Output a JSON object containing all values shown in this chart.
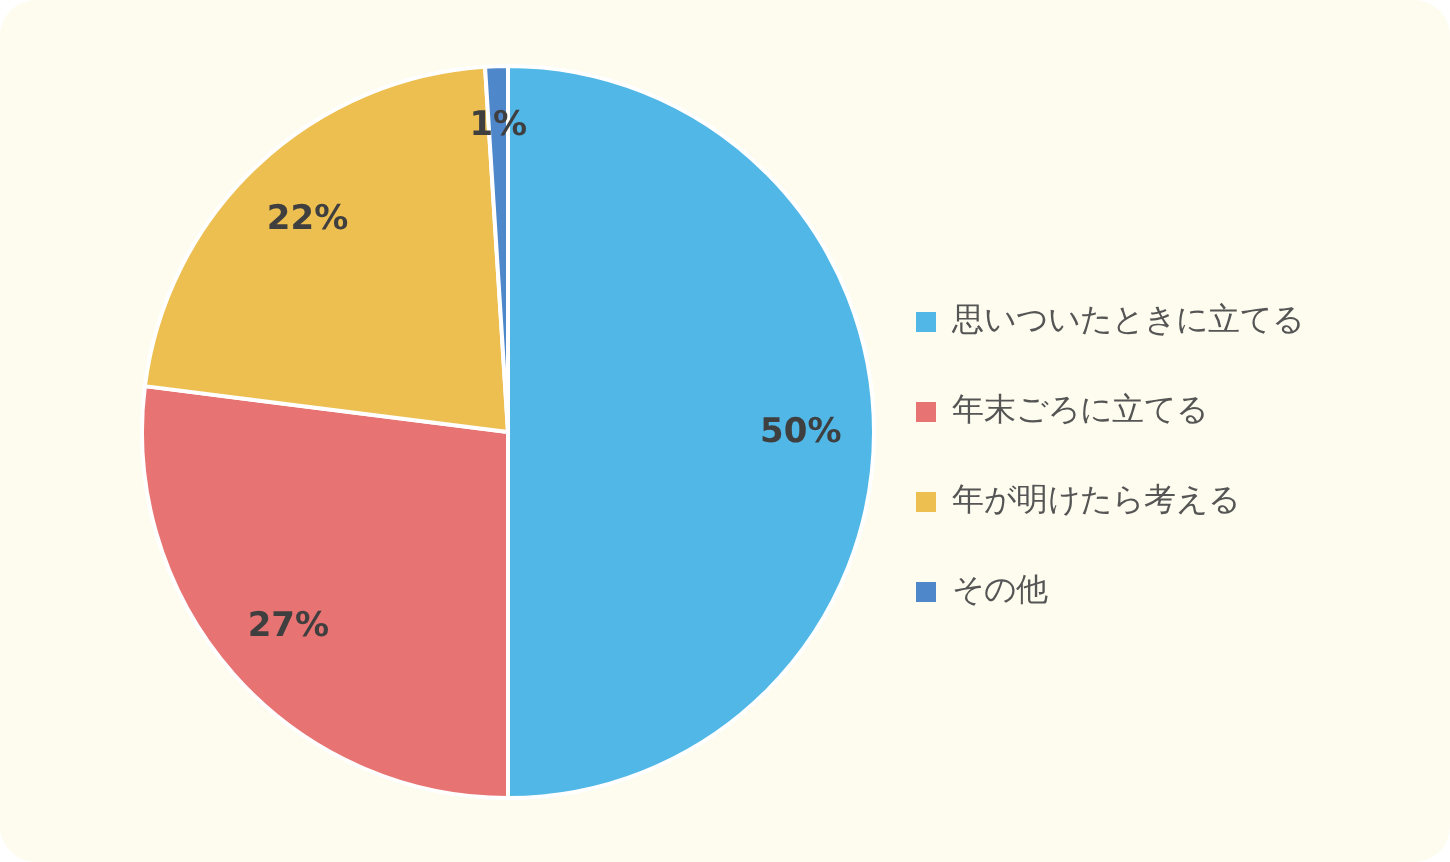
{
  "chart_data": {
    "type": "pie",
    "categories": [
      "思いついたときに立てる",
      "年末ごろに立てる",
      "年が明けたら考える",
      "その他"
    ],
    "values": [
      50,
      27,
      22,
      1
    ],
    "colors": [
      "#50b7e7",
      "#e77473",
      "#ecbf50",
      "#4f87cb"
    ],
    "value_labels": [
      "50%",
      "27%",
      "22%",
      "1%"
    ],
    "legend": "right"
  }
}
